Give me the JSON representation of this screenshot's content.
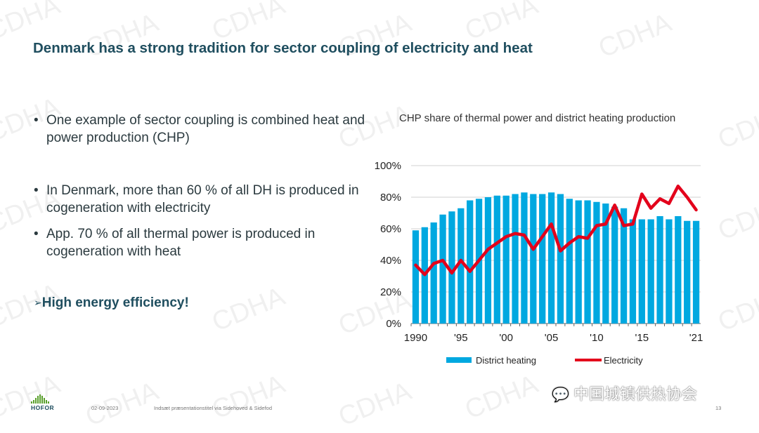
{
  "slide": {
    "title": "Denmark has a strong tradition for sector coupling of electricity and heat",
    "page_number": "13"
  },
  "bullets": [
    {
      "marker": "•",
      "text": "One example of sector coupling is combined heat and power production (CHP)"
    },
    {
      "marker": "•",
      "text": "In Denmark, more than 60 % of all DH is produced in cogeneration with electricity"
    },
    {
      "marker": "•",
      "text": "App. 70 % of all thermal power is produced in cogeneration with heat"
    }
  ],
  "emphasis": {
    "marker": "➢",
    "text": "High energy efficiency!"
  },
  "footer": {
    "logo": "HOFOR",
    "date": "02-09-2023",
    "text": "Indsæt præsentationstitel via Sidehoved & Sidefod"
  },
  "watermark": {
    "text": "CDHA",
    "wechat_label": "中国城镇供热协会",
    "wechat_icon": "wechat-icon"
  },
  "colors": {
    "title": "#1f4e5f",
    "bars": "#00a8e0",
    "line": "#e3001b"
  },
  "chart_data": {
    "type": "bar",
    "title": "CHP share of thermal power and district heating production",
    "x": [
      1990,
      1991,
      1992,
      1993,
      1994,
      1995,
      1996,
      1997,
      1998,
      1999,
      2000,
      2001,
      2002,
      2003,
      2004,
      2005,
      2006,
      2007,
      2008,
      2009,
      2010,
      2011,
      2012,
      2013,
      2014,
      2015,
      2016,
      2017,
      2018,
      2019,
      2020,
      2021
    ],
    "tick_labels": [
      "1990",
      "'95",
      "'00",
      "'05",
      "'10",
      "'15",
      "'21"
    ],
    "tick_years": [
      1990,
      1995,
      2000,
      2005,
      2010,
      2015,
      2021
    ],
    "y_ticks": [
      "0%",
      "20%",
      "40%",
      "60%",
      "80%",
      "100%"
    ],
    "ylim": [
      0,
      100
    ],
    "series": [
      {
        "name": "District heating",
        "type": "bar",
        "values": [
          59,
          61,
          64,
          69,
          71,
          73,
          78,
          79,
          80,
          81,
          81,
          82,
          83,
          82,
          82,
          83,
          82,
          79,
          78,
          78,
          77,
          76,
          74,
          73,
          66,
          66,
          66,
          68,
          66,
          68,
          65,
          65
        ]
      },
      {
        "name": "Electricity",
        "type": "line",
        "values": [
          37,
          31,
          38,
          40,
          32,
          40,
          33,
          40,
          47,
          51,
          55,
          57,
          56,
          47,
          55,
          63,
          46,
          51,
          55,
          54,
          62,
          63,
          75,
          62,
          63,
          82,
          73,
          79,
          76,
          87,
          80,
          72
        ]
      }
    ],
    "legend": [
      "District heating",
      "Electricity"
    ],
    "legend_position": "bottom"
  }
}
